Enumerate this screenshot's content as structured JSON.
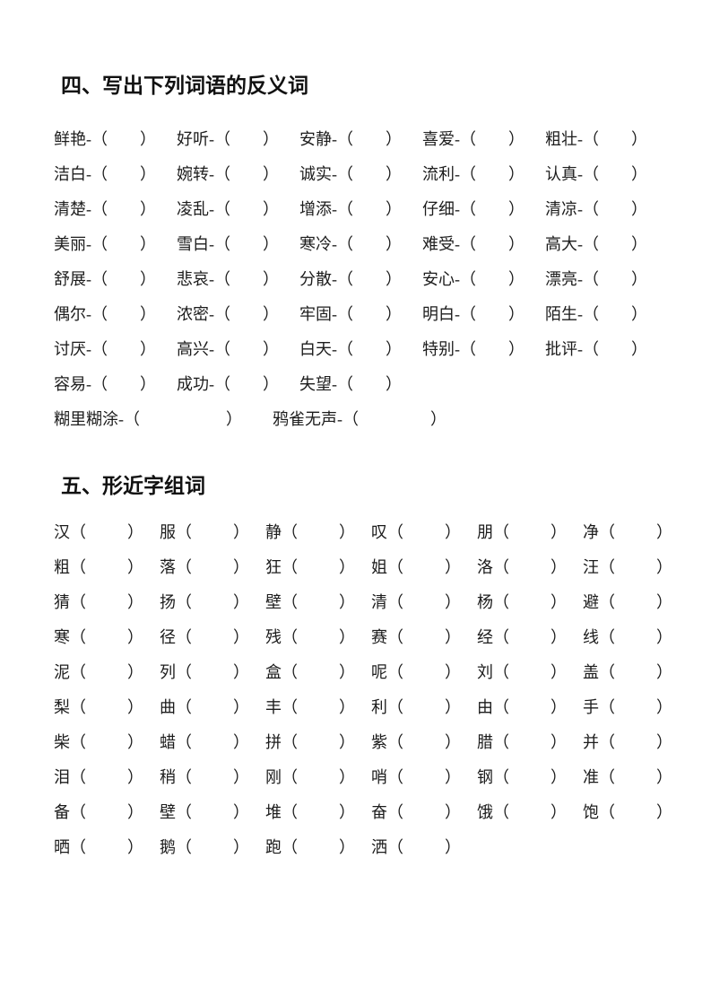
{
  "punctuation": {
    "dash": "-",
    "open_paren": "（",
    "close_paren": "）"
  },
  "section4": {
    "title": "四、写出下列词语的反义词",
    "rows": [
      [
        "鲜艳",
        "好听",
        "安静",
        "喜爱",
        "粗壮"
      ],
      [
        "洁白",
        "婉转",
        "诚实",
        "流利",
        "认真"
      ],
      [
        "清楚",
        "凌乱",
        "增添",
        "仔细",
        "清凉"
      ],
      [
        "美丽",
        "雪白",
        "寒冷",
        "难受",
        "高大"
      ],
      [
        "舒展",
        "悲哀",
        "分散",
        "安心",
        "漂亮"
      ],
      [
        "偶尔",
        "浓密",
        "牢固",
        "明白",
        "陌生"
      ],
      [
        "讨厌",
        "高兴",
        "白天",
        "特别",
        "批评"
      ],
      [
        "容易",
        "成功",
        "失望"
      ]
    ],
    "idiom_row": [
      "糊里糊涂",
      "鸦雀无声"
    ]
  },
  "section5": {
    "title": "五、形近字组词",
    "rows": [
      [
        "汉",
        "服",
        "静",
        "叹",
        "朋",
        "净"
      ],
      [
        "粗",
        "落",
        "狂",
        "姐",
        "洛",
        "汪"
      ],
      [
        "猜",
        "扬",
        "壁",
        "清",
        "杨",
        "避"
      ],
      [
        "寒",
        "径",
        "残",
        "赛",
        "经",
        "线"
      ],
      [
        "泥",
        "列",
        "盒",
        "呢",
        "刘",
        "盖"
      ],
      [
        "梨",
        "曲",
        "丰",
        "利",
        "由",
        "手"
      ],
      [
        "柴",
        "蜡",
        "拼",
        "紫",
        "腊",
        "并"
      ],
      [
        "泪",
        "稍",
        "刚",
        "哨",
        "钢",
        "准"
      ],
      [
        "备",
        "壁",
        "堆",
        "奋",
        "饿",
        "饱"
      ],
      [
        "晒",
        "鹅",
        "跑",
        "洒"
      ]
    ]
  }
}
